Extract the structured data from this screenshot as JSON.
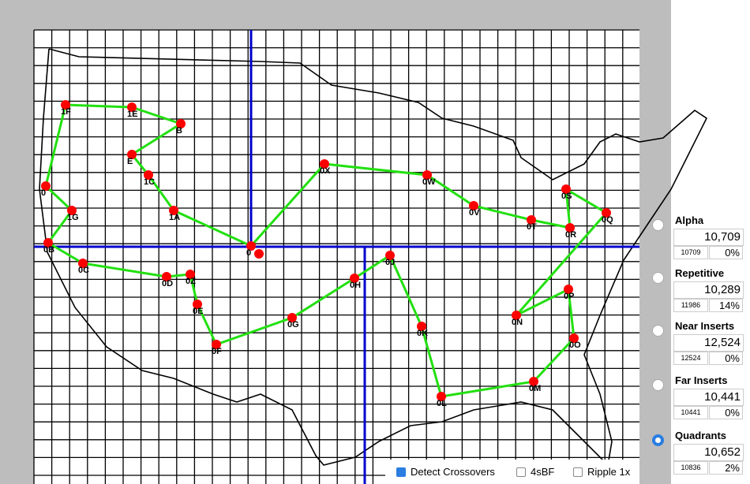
{
  "options": [
    {
      "name": "Alpha",
      "score": "10,709",
      "raw": "10709",
      "pct": "0%",
      "selected": false
    },
    {
      "name": "Repetitive",
      "score": "10,289",
      "raw": "11986",
      "pct": "14%",
      "selected": false
    },
    {
      "name": "Near Inserts",
      "score": "12,524",
      "raw": "12524",
      "pct": "0%",
      "selected": false
    },
    {
      "name": "Far Inserts",
      "score": "10,441",
      "raw": "10441",
      "pct": "0%",
      "selected": false
    },
    {
      "name": "Quadrants",
      "score": "10,652",
      "raw": "10836",
      "pct": "2%",
      "selected": true
    }
  ],
  "checkboxes": [
    {
      "label": "Detect Crossovers",
      "checked": true
    },
    {
      "label": "4sBF",
      "checked": false
    },
    {
      "label": "Ripple 1x",
      "checked": false
    }
  ],
  "nodes": [
    "1F",
    "1E",
    "B",
    "E",
    "1C",
    "1A",
    "0X",
    "0W",
    "0V",
    "0T",
    "0R",
    "0S",
    "0Q",
    "0N",
    "0P",
    "0O",
    "0M",
    "0L",
    "0K",
    "0J",
    "0H",
    "0G",
    "0F",
    "0E",
    "0Z",
    "0D",
    "0C",
    "0",
    "0B",
    "1G",
    "0"
  ]
}
